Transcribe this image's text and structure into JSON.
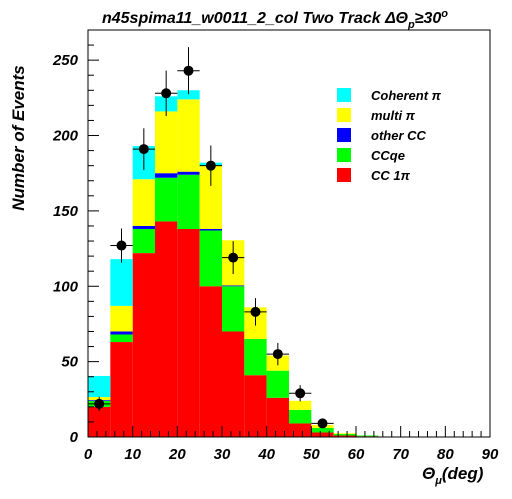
{
  "chart_data": {
    "type": "bar",
    "title": "n45spima11_w0011_2_col Two Track ΔΘ",
    "title_subscript": "p",
    "title_suffix": "≥30",
    "title_superscript": "o",
    "xlabel": "Θ",
    "xlabel_subscript": "μ",
    "xlabel_suffix": "(deg)",
    "ylabel": "Number of Events",
    "xlim": [
      0,
      90
    ],
    "ylim": [
      0,
      270
    ],
    "x_ticks": [
      "0",
      "10",
      "20",
      "30",
      "40",
      "50",
      "60",
      "70",
      "80",
      "90"
    ],
    "y_ticks": [
      "0",
      "50",
      "100",
      "150",
      "200",
      "250"
    ],
    "bin_edges": [
      0,
      5,
      10,
      15,
      20,
      25,
      30,
      35,
      40,
      45,
      50,
      55,
      60,
      65,
      70,
      75,
      80,
      85,
      90
    ],
    "stack_series": [
      {
        "name": "CC 1π",
        "color": "#ff0000",
        "values": [
          20,
          63,
          122,
          143,
          138,
          100,
          70,
          41,
          26,
          9,
          3,
          1,
          0.5,
          0,
          0,
          0,
          0,
          0
        ]
      },
      {
        "name": "CCqe",
        "color": "#00ff00",
        "values": [
          4,
          5,
          16,
          29,
          36,
          37,
          30,
          24,
          18,
          9,
          3,
          1,
          0.5,
          0,
          0,
          0,
          0,
          0
        ]
      },
      {
        "name": "other CC",
        "color": "#0000ff",
        "values": [
          0.5,
          2,
          2,
          3,
          2,
          1,
          0.5,
          0,
          0,
          0,
          0,
          0,
          0,
          0,
          0,
          0,
          0,
          0
        ]
      },
      {
        "name": "multi π",
        "color": "#ffff00",
        "values": [
          2,
          17,
          31,
          41,
          48,
          42,
          30,
          21,
          10,
          6,
          2,
          0.5,
          0,
          0,
          0,
          0,
          0,
          0
        ]
      },
      {
        "name": "Coherent π",
        "color": "#00ffff",
        "values": [
          14,
          31,
          22,
          10,
          6,
          2,
          0,
          0,
          0,
          0,
          0,
          0,
          0,
          0,
          0,
          0,
          0,
          0
        ]
      }
    ],
    "data_points": {
      "x": [
        2.5,
        7.5,
        12.5,
        17.5,
        22.5,
        27.5,
        32.5,
        37.5,
        42.5,
        47.5,
        52.5
      ],
      "y": [
        22,
        127,
        191,
        228,
        243,
        180,
        119,
        83,
        55,
        29,
        9
      ],
      "err": [
        4.7,
        11.3,
        13.8,
        15.1,
        15.6,
        13.4,
        10.9,
        9.1,
        7.4,
        5.4,
        3
      ]
    },
    "legend": {
      "placement": "top-right",
      "entries": [
        {
          "label": "Coherent π",
          "color": "#00ffff"
        },
        {
          "label": "multi π",
          "color": "#ffff00"
        },
        {
          "label": "other CC",
          "color": "#0000ff"
        },
        {
          "label": "CCqe",
          "color": "#00ff00"
        },
        {
          "label": "CC 1π",
          "color": "#ff0000"
        }
      ]
    },
    "grid": false
  }
}
